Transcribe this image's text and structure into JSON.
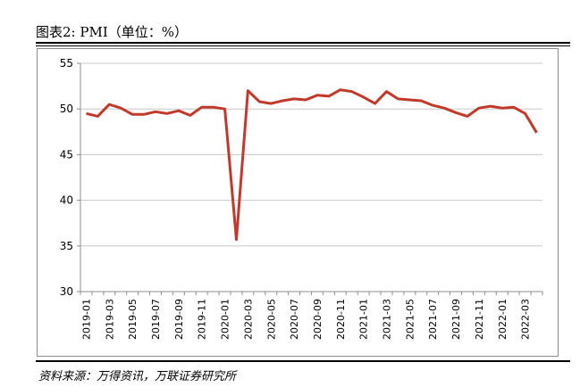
{
  "header": {
    "title": "图表2:   PMI（单位：%）"
  },
  "footer": {
    "source": "资料来源：万得资讯，万联证券研究所"
  },
  "colors": {
    "line": "#c0392b",
    "grid": "#c8c8c8",
    "axis": "#8c8c8c"
  },
  "chart_data": {
    "type": "line",
    "title": "",
    "xlabel": "",
    "ylabel": "",
    "ylim": [
      30,
      55
    ],
    "yticks": [
      30,
      35,
      40,
      45,
      50,
      55
    ],
    "grid": "horizontal",
    "legend": "none",
    "x": [
      "2019-01",
      "2019-02",
      "2019-03",
      "2019-04",
      "2019-05",
      "2019-06",
      "2019-07",
      "2019-08",
      "2019-09",
      "2019-10",
      "2019-11",
      "2019-12",
      "2020-01",
      "2020-02",
      "2020-03",
      "2020-04",
      "2020-05",
      "2020-06",
      "2020-07",
      "2020-08",
      "2020-09",
      "2020-10",
      "2020-11",
      "2020-12",
      "2021-01",
      "2021-02",
      "2021-03",
      "2021-04",
      "2021-05",
      "2021-06",
      "2021-07",
      "2021-08",
      "2021-09",
      "2021-10",
      "2021-11",
      "2021-12",
      "2022-01",
      "2022-02",
      "2022-03",
      "2022-04"
    ],
    "xtick_labels": [
      "2019-01",
      "2019-03",
      "2019-05",
      "2019-07",
      "2019-09",
      "2019-11",
      "2020-01",
      "2020-03",
      "2020-05",
      "2020-07",
      "2020-09",
      "2020-11",
      "2021-01",
      "2021-03",
      "2021-05",
      "2021-07",
      "2021-09",
      "2021-11",
      "2022-01",
      "2022-03"
    ],
    "series": [
      {
        "values": [
          49.5,
          49.2,
          50.5,
          50.1,
          49.4,
          49.4,
          49.7,
          49.5,
          49.8,
          49.3,
          50.2,
          50.2,
          50.0,
          35.7,
          52.0,
          50.8,
          50.6,
          50.9,
          51.1,
          51.0,
          51.5,
          51.4,
          52.1,
          51.9,
          51.3,
          50.6,
          51.9,
          51.1,
          51.0,
          50.9,
          50.4,
          50.1,
          49.6,
          49.2,
          50.1,
          50.3,
          50.1,
          50.2,
          49.5,
          47.4
        ]
      }
    ]
  }
}
